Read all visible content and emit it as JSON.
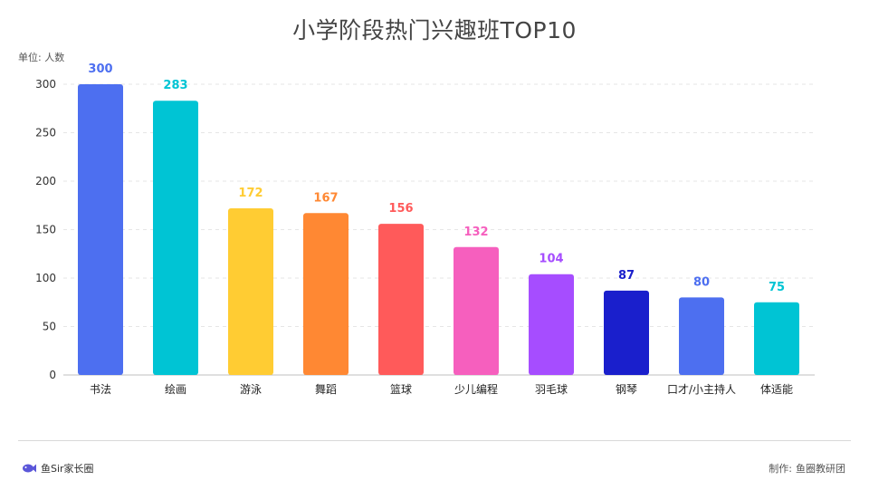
{
  "title": "小学阶段热门兴趣班TOP10",
  "unit": "单位: 人数",
  "footer": {
    "brand": "鱼Sir家长圈",
    "credit_label": "制作:",
    "credit_value": "鱼圈教研团"
  },
  "chart_data": {
    "type": "bar",
    "title": "小学阶段热门兴趣班TOP10",
    "ylabel": "单位: 人数",
    "ylim": [
      0,
      300
    ],
    "yticks": [
      0,
      50,
      100,
      150,
      200,
      250,
      300
    ],
    "grid": true,
    "categories": [
      "书法",
      "绘画",
      "游泳",
      "舞蹈",
      "篮球",
      "少儿编程",
      "羽毛球",
      "钢琴",
      "口才/小主持人",
      "体适能"
    ],
    "values": [
      300,
      283,
      172,
      167,
      156,
      132,
      104,
      87,
      80,
      75
    ],
    "colors": [
      "#4D6FF0",
      "#00C4D4",
      "#FFCC33",
      "#FF8833",
      "#FF5A5A",
      "#F65FBE",
      "#A64DFF",
      "#1A1FCC",
      "#4D6FF0",
      "#00C4D4"
    ],
    "label_colors": [
      "#4D6FF0",
      "#00C4D4",
      "#FFCC33",
      "#FF8833",
      "#FF5A5A",
      "#F65FBE",
      "#A64DFF",
      "#1A1FCC",
      "#4D6FF0",
      "#00C4D4"
    ]
  }
}
